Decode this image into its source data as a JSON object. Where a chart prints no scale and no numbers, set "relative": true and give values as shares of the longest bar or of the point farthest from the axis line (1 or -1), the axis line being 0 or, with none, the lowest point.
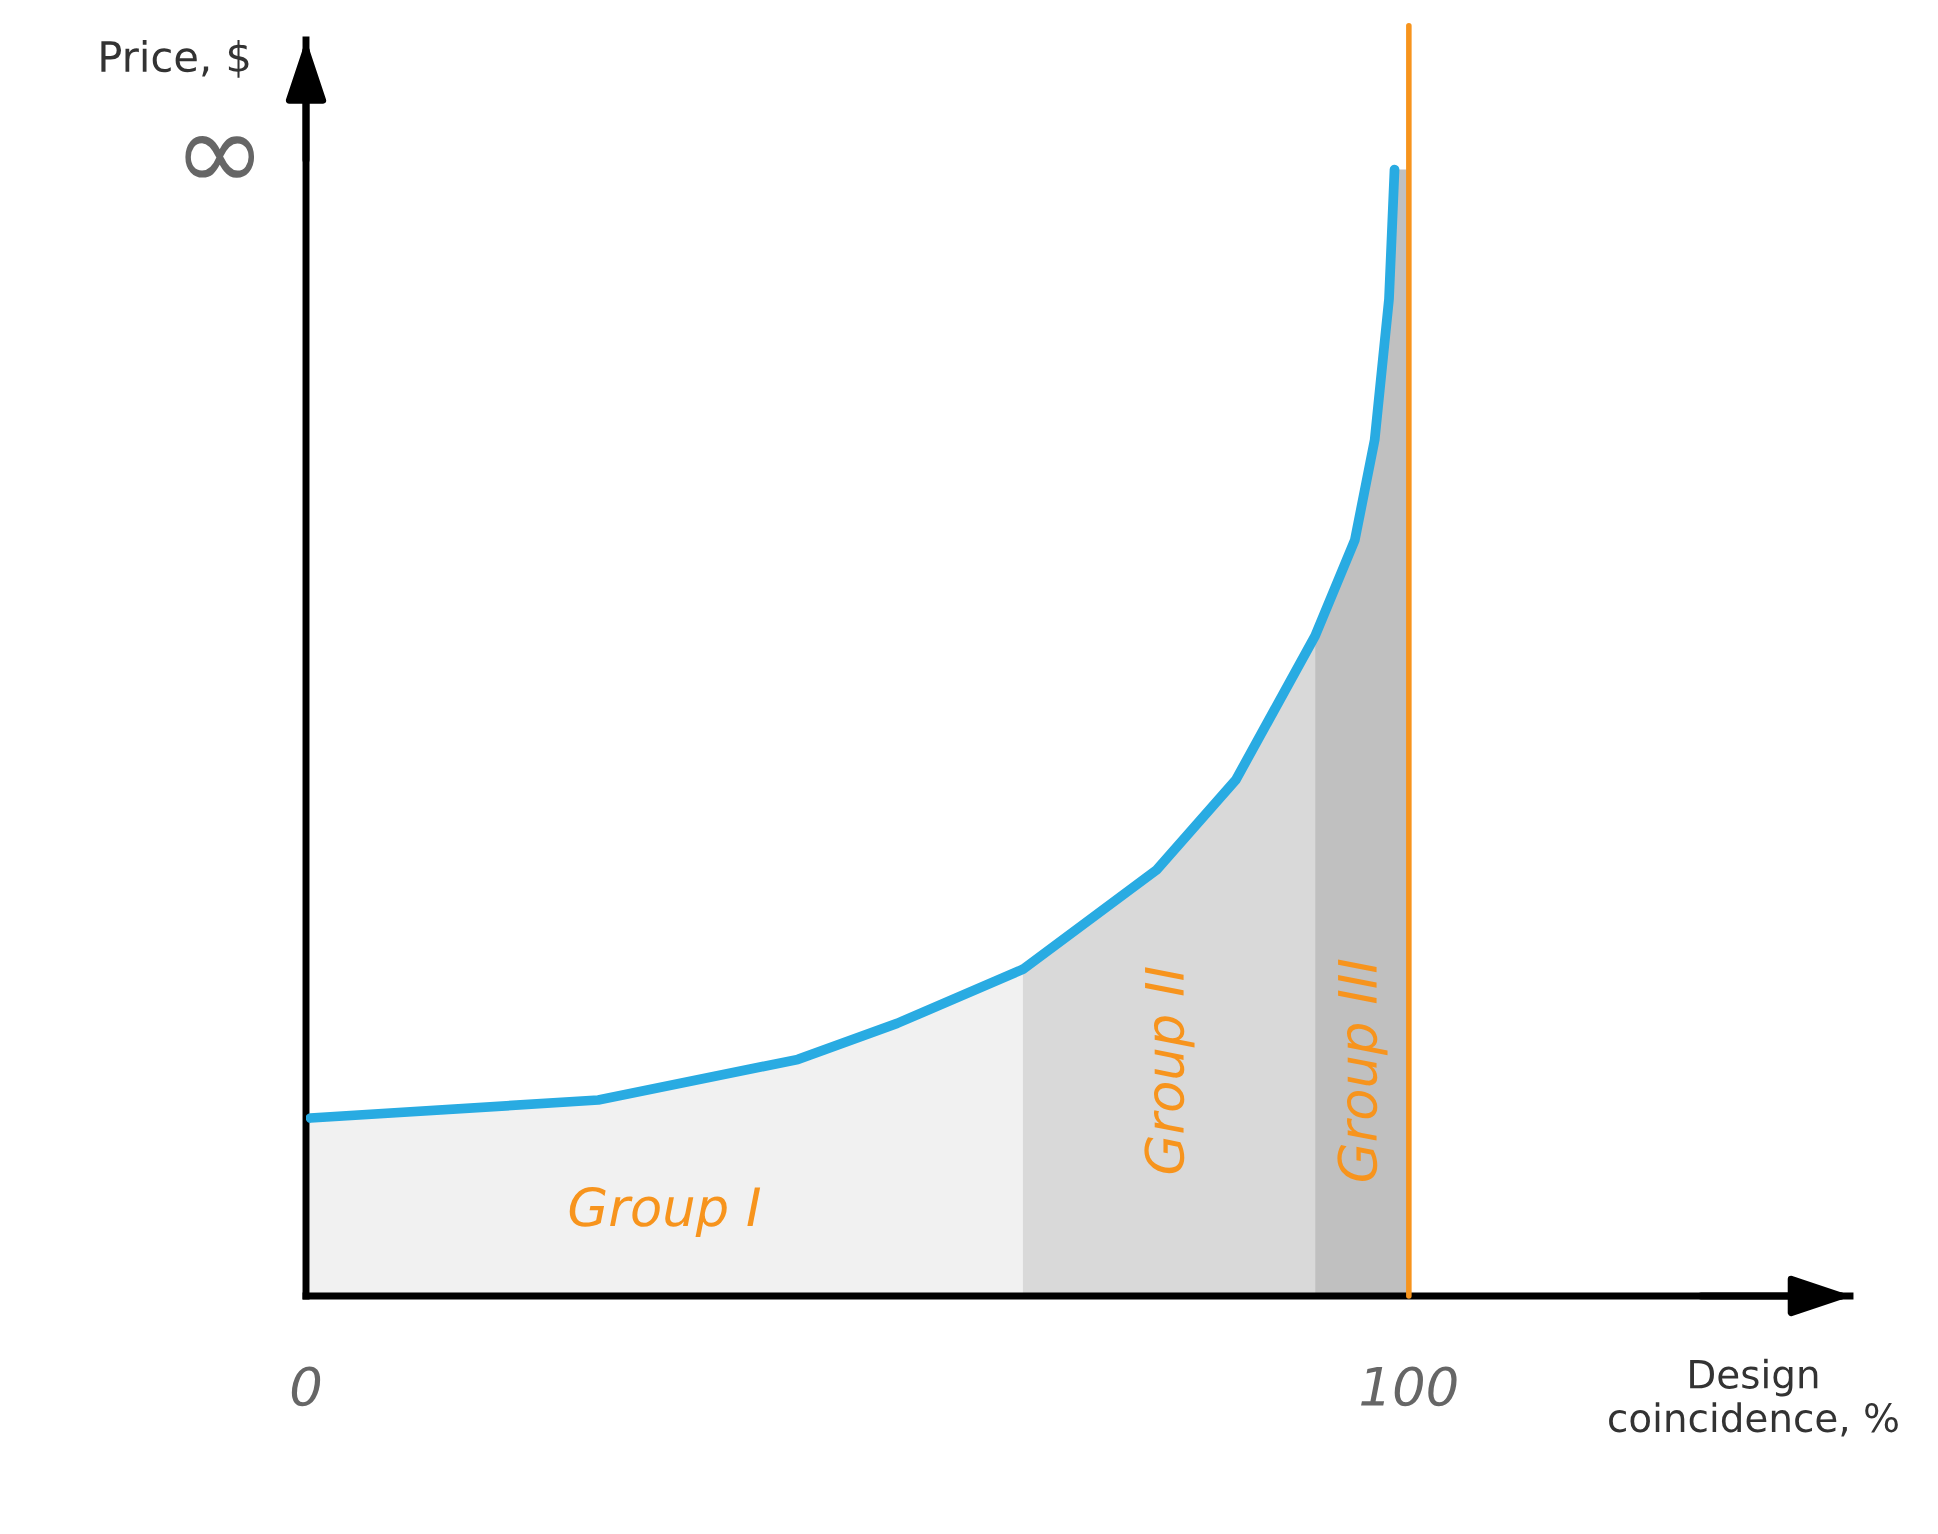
{
  "chart_data": {
    "type": "line",
    "relative": true,
    "xlabel": "Design\ncoincidence, %",
    "ylabel": "Price, $",
    "xlim": [
      0,
      140
    ],
    "xticks": [
      0,
      100
    ],
    "legend": false,
    "marker": "none",
    "line_style": "solid",
    "series": [
      {
        "type": "area",
        "color": "#f1f1f1",
        "x": [
          0,
          0.4,
          26.5,
          44.6,
          53.6,
          65
        ],
        "values": [
          0.158,
          0.158,
          0.174,
          0.21,
          0.242,
          0.29
        ]
      },
      {
        "type": "area",
        "color": "#d9d9d9",
        "x": [
          65,
          77.1,
          84.3,
          91.5
        ],
        "values": [
          0.29,
          0.378,
          0.458,
          0.586
        ]
      },
      {
        "type": "area",
        "color": "#c0c0c0",
        "x": [
          91.5,
          95.1,
          96.9,
          98.2,
          98.7,
          100
        ],
        "values": [
          0.586,
          0.671,
          0.76,
          0.885,
          1.0,
          1.0
        ]
      },
      {
        "type": "line",
        "color": "#29abe2",
        "x": [
          0.4,
          26.5,
          44.6,
          53.6,
          65,
          77.1,
          84.3,
          91.5,
          95.1,
          96.9,
          98.2,
          98.7
        ],
        "values": [
          0.158,
          0.174,
          0.21,
          0.242,
          0.29,
          0.378,
          0.458,
          0.586,
          0.671,
          0.76,
          0.885,
          1.0
        ]
      }
    ],
    "ref_lines": [
      {
        "axis": "x",
        "value": 100,
        "color": "#f7941d",
        "line_style": "solid"
      }
    ],
    "annotations": [
      "Group I",
      "Group II",
      "Group III",
      "∞"
    ]
  }
}
